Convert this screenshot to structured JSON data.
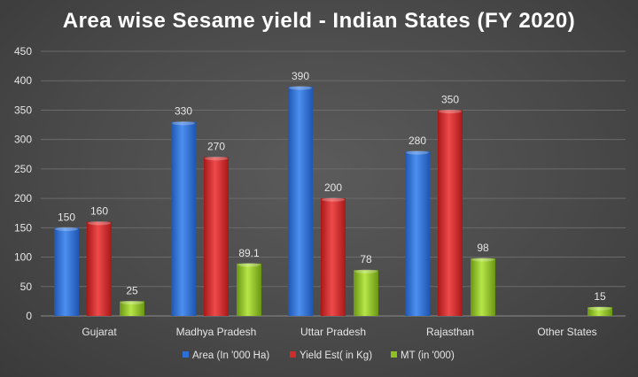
{
  "chart_data": {
    "type": "bar",
    "title": "Area wise Sesame yield - Indian States (FY 2020)",
    "categories": [
      "Gujarat",
      "Madhya Pradesh",
      "Uttar Pradesh",
      "Rajasthan",
      "Other States"
    ],
    "series": [
      {
        "name": "Area (In '000 Ha)",
        "color": "#2e6fd6",
        "values": [
          150,
          330,
          390,
          280,
          null
        ],
        "labels": [
          "150",
          "330",
          "390",
          "280",
          ""
        ]
      },
      {
        "name": "Yield Est( in Kg)",
        "color": "#d42a2a",
        "values": [
          160,
          270,
          200,
          350,
          null
        ],
        "labels": [
          "160",
          "270",
          "200",
          "350",
          ""
        ]
      },
      {
        "name": "MT (in '000)",
        "color": "#8dc21f",
        "values": [
          25,
          89.1,
          78,
          98,
          15
        ],
        "labels": [
          "25",
          "89.1",
          "78",
          "98",
          "15"
        ]
      }
    ],
    "ylim": [
      0,
      450
    ],
    "yticks": [
      0,
      50,
      100,
      150,
      200,
      250,
      300,
      350,
      400,
      450
    ],
    "grid": true,
    "legend_position": "bottom"
  }
}
